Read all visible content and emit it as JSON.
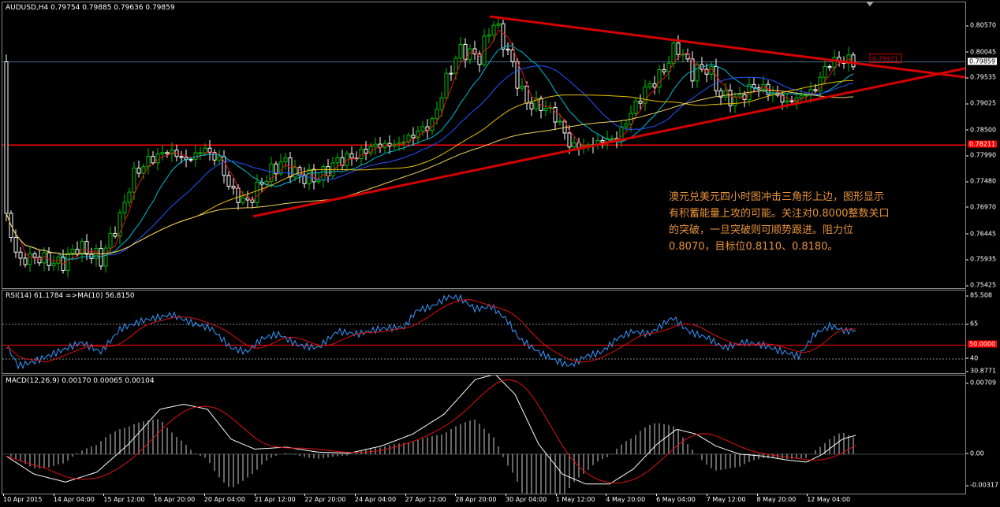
{
  "chart_title": "AUDUSD,H4  0.79754 0.79885 0.79636 0.79859",
  "rsi_label": "RSI(14) 61.1784 =>MA(10) 56.8150",
  "macd_label": "MACD(12,26,9) 0.00170 0.00065 0.00104",
  "annotation": "澳元兑美元四小时图冲击三角形上边，图形显示有积蓄能量上攻的可能。关注对0.8000整数关口的突破，一旦突破则可顺势跟进。阻力位0.8070，目标位0.8110、0.8180。",
  "price_axis": [
    "0.80570",
    "0.80045",
    "0.79535",
    "0.79025",
    "0.78500",
    "0.77990",
    "0.77480",
    "0.76970",
    "0.76445",
    "0.75935",
    "0.75425"
  ],
  "current_price_tag": "0.79859",
  "upper_line_tag": "0.79921",
  "red_hline_tag": "0.78211",
  "rsi_axis": [
    "85.508",
    "65",
    "50.0000",
    "40",
    "30.8771"
  ],
  "macd_axis": [
    "0.00709",
    "0.00",
    "-0.00317"
  ],
  "x_axis": [
    "10 Apr 2015",
    "14 Apr 04:00",
    "15 Apr 12:00",
    "16 Apr 20:00",
    "20 Apr 04:00",
    "21 Apr 12:00",
    "22 Apr 20:00",
    "24 Apr 04:00",
    "27 Apr 12:00",
    "28 Apr 20:00",
    "30 Apr 04:00",
    "1 May 12:00",
    "4 May 20:00",
    "6 May 04:00",
    "7 May 12:00",
    "8 May 20:00",
    "12 May 04:00"
  ],
  "colors": {
    "bull": "#00c000",
    "bear": "#ffffff",
    "trend": "#d40000",
    "ma_fast": "#e01010",
    "ma_mid": "#00bcd4",
    "ma_slow": "#2255ff",
    "ma_yellow": "#e8c000",
    "ma_yellow2": "#f0d060",
    "rsi": "#3399ff",
    "macd_line": "#ffffff",
    "macd_signal": "#e01010",
    "grid_red": "#ff0000",
    "hline": "#4a6a90"
  }
}
